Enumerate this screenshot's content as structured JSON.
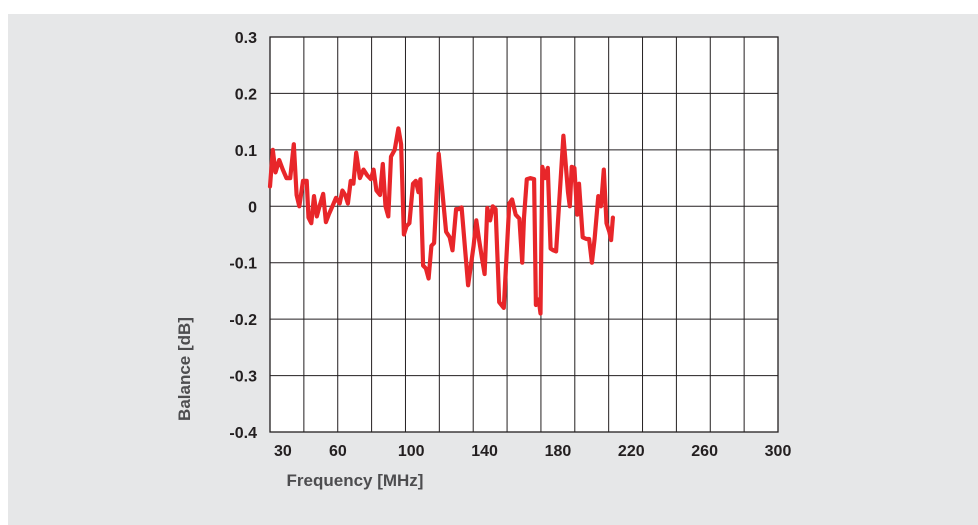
{
  "chart_data": {
    "type": "line",
    "xlabel": "Frequency [MHz]",
    "ylabel": "Balance [dB]",
    "xlim": [
      23,
      300
    ],
    "ylim": [
      -0.4,
      0.3
    ],
    "x_ticks": [
      30,
      60,
      100,
      140,
      180,
      220,
      260,
      300
    ],
    "x_tick_labels": [
      "30",
      "60",
      "100",
      "140",
      "180",
      "220",
      "260",
      "300"
    ],
    "y_ticks": [
      0.3,
      0.2,
      0.1,
      0,
      -0.1,
      -0.2,
      -0.3,
      -0.4
    ],
    "y_tick_labels": [
      "0.3",
      "0.2",
      "0.1",
      "0",
      "-0.1",
      "-0.2",
      "-0.3",
      "-0.4"
    ],
    "grid": true,
    "line_color": "#e8262a",
    "series": [
      {
        "points": [
          [
            23,
            0.035
          ],
          [
            24.5,
            0.1
          ],
          [
            26,
            0.06
          ],
          [
            28,
            0.082
          ],
          [
            30,
            0.065
          ],
          [
            32,
            0.05
          ],
          [
            34,
            0.05
          ],
          [
            36,
            0.11
          ],
          [
            37.5,
            0.02
          ],
          [
            39,
            0.0
          ],
          [
            41,
            0.045
          ],
          [
            43,
            0.045
          ],
          [
            44,
            -0.02
          ],
          [
            45.5,
            -0.03
          ],
          [
            47,
            0.018
          ],
          [
            48.5,
            -0.018
          ],
          [
            50,
            0.0
          ],
          [
            52,
            0.022
          ],
          [
            53.5,
            -0.028
          ],
          [
            55,
            -0.015
          ],
          [
            57,
            0.0
          ],
          [
            59,
            0.015
          ],
          [
            61,
            0.005
          ],
          [
            62.5,
            0.028
          ],
          [
            64,
            0.02
          ],
          [
            65.5,
            0.005
          ],
          [
            67,
            0.045
          ],
          [
            68.5,
            0.04
          ],
          [
            70,
            0.095
          ],
          [
            72,
            0.05
          ],
          [
            74,
            0.065
          ],
          [
            76,
            0.055
          ],
          [
            78,
            0.048
          ],
          [
            79.5,
            0.065
          ],
          [
            81,
            0.028
          ],
          [
            83,
            0.02
          ],
          [
            84.5,
            0.075
          ],
          [
            86,
            0.0
          ],
          [
            87.5,
            -0.018
          ],
          [
            89,
            0.088
          ],
          [
            91,
            0.1
          ],
          [
            93,
            0.138
          ],
          [
            94.5,
            0.11
          ],
          [
            96,
            -0.05
          ],
          [
            97.5,
            -0.035
          ],
          [
            99,
            -0.03
          ],
          [
            101,
            0.04
          ],
          [
            102.5,
            0.045
          ],
          [
            104,
            0.025
          ],
          [
            105,
            0.048
          ],
          [
            106.5,
            -0.105
          ],
          [
            108,
            -0.11
          ],
          [
            109.5,
            -0.128
          ],
          [
            111,
            -0.07
          ],
          [
            112.5,
            -0.065
          ],
          [
            115,
            0.093
          ],
          [
            117,
            0.025
          ],
          [
            119,
            -0.045
          ],
          [
            121,
            -0.055
          ],
          [
            122.5,
            -0.078
          ],
          [
            124.5,
            -0.005
          ],
          [
            126,
            -0.005
          ],
          [
            127.5,
            -0.002
          ],
          [
            131,
            -0.14
          ],
          [
            134,
            -0.07
          ],
          [
            135.5,
            -0.025
          ],
          [
            137,
            -0.06
          ],
          [
            139,
            -0.1
          ],
          [
            140,
            -0.12
          ],
          [
            141.5,
            -0.003
          ],
          [
            143,
            -0.025
          ],
          [
            144.5,
            0.0
          ],
          [
            146,
            -0.005
          ],
          [
            148,
            -0.17
          ],
          [
            150.5,
            -0.18
          ],
          [
            152,
            -0.085
          ],
          [
            153.5,
            0.005
          ],
          [
            155,
            0.012
          ],
          [
            157,
            -0.015
          ],
          [
            159,
            -0.022
          ],
          [
            160.5,
            -0.1
          ],
          [
            161.5,
            -0.02
          ],
          [
            163,
            0.048
          ],
          [
            165,
            0.05
          ],
          [
            167,
            0.048
          ],
          [
            168,
            -0.175
          ],
          [
            169.5,
            -0.165
          ],
          [
            170.5,
            -0.19
          ],
          [
            171.5,
            0.07
          ],
          [
            173,
            0.05
          ],
          [
            174.5,
            0.068
          ],
          [
            176,
            -0.075
          ],
          [
            177.5,
            -0.078
          ],
          [
            179,
            -0.08
          ],
          [
            183,
            0.125
          ],
          [
            185.5,
            0.025
          ],
          [
            186.5,
            0.0
          ],
          [
            187.5,
            0.07
          ],
          [
            189,
            0.068
          ],
          [
            190.5,
            -0.015
          ],
          [
            191.5,
            0.04
          ],
          [
            193.5,
            -0.055
          ],
          [
            195.5,
            -0.058
          ],
          [
            197,
            -0.058
          ],
          [
            198.5,
            -0.1
          ],
          [
            200,
            -0.058
          ],
          [
            202,
            0.018
          ],
          [
            203.5,
            0.0
          ],
          [
            205,
            0.065
          ],
          [
            206.5,
            -0.03
          ],
          [
            208,
            -0.045
          ],
          [
            209,
            -0.06
          ],
          [
            210,
            -0.02
          ]
        ]
      }
    ]
  }
}
